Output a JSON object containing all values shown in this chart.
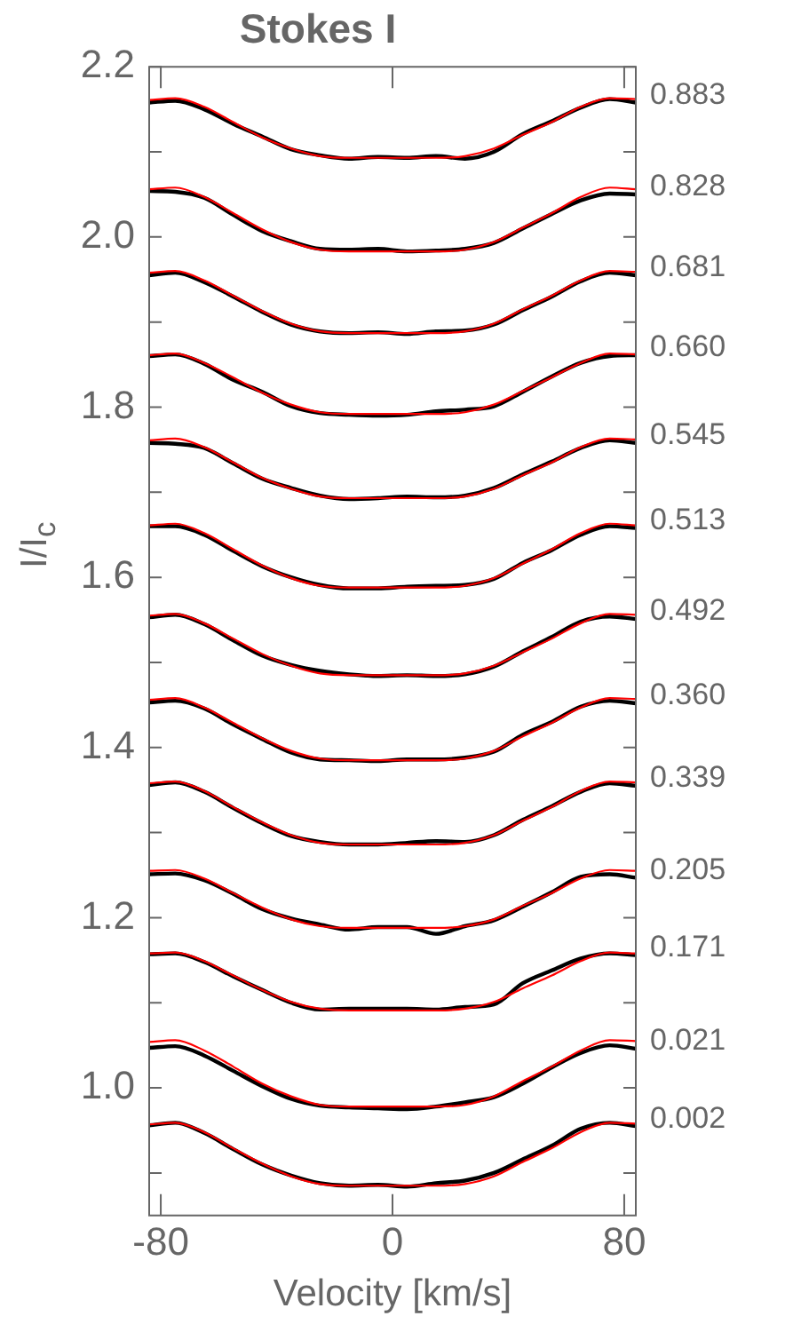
{
  "chart_data": {
    "type": "line",
    "title": "Stokes I",
    "xlabel": "Velocity [km/s]",
    "ylabel": "I/I$_{c}$",
    "x": [
      -84,
      -75,
      -65,
      -55,
      -45,
      -35,
      -25,
      -15,
      -5,
      5,
      15,
      25,
      35,
      45,
      55,
      65,
      75,
      84
    ],
    "xlim": [
      -84,
      84
    ],
    "xticks": [
      -80,
      0,
      80
    ],
    "ylim": [
      0.85,
      2.2
    ],
    "yticks": [
      {
        "value": 0.9,
        "label": null
      },
      {
        "value": 1.0,
        "label": "1.0"
      },
      {
        "value": 1.1,
        "label": null
      },
      1.2,
      {
        "value": 1.3,
        "label": null
      },
      1.4,
      {
        "value": 1.5,
        "label": null
      },
      1.6,
      {
        "value": 1.7,
        "label": null
      },
      1.8,
      {
        "value": 1.9,
        "label": null
      },
      {
        "value": 2.0,
        "label": "2.0"
      },
      {
        "value": 2.1,
        "label": null
      },
      2.2
    ],
    "legend": false,
    "series": [
      {
        "color": "#ff0000",
        "values": [
          2.161,
          2.163,
          2.153,
          2.135,
          2.117,
          2.104,
          2.095,
          2.093,
          2.093,
          2.093,
          2.093,
          2.095,
          2.104,
          2.12,
          2.135,
          2.153,
          2.163,
          2.162
        ]
      },
      {
        "name": "0.883",
        "color": "#000000",
        "values": [
          2.158,
          2.16,
          2.15,
          2.133,
          2.118,
          2.103,
          2.096,
          2.092,
          2.094,
          2.093,
          2.095,
          2.092,
          2.1,
          2.121,
          2.136,
          2.152,
          2.162,
          2.158
        ]
      },
      {
        "color": "#ff0000",
        "values": [
          2.056,
          2.058,
          2.047,
          2.028,
          2.009,
          1.994,
          1.985,
          1.983,
          1.983,
          1.983,
          1.983,
          1.985,
          1.994,
          2.011,
          2.028,
          2.047,
          2.058,
          2.056
        ]
      },
      {
        "name": "0.828",
        "color": "#000000",
        "values": [
          2.054,
          2.053,
          2.046,
          2.026,
          2.007,
          1.995,
          1.986,
          1.985,
          1.986,
          1.983,
          1.984,
          1.986,
          1.993,
          2.01,
          2.027,
          2.043,
          2.051,
          2.05
        ]
      },
      {
        "color": "#ff0000",
        "values": [
          1.958,
          1.96,
          1.949,
          1.931,
          1.913,
          1.898,
          1.889,
          1.887,
          1.887,
          1.887,
          1.887,
          1.889,
          1.898,
          1.915,
          1.931,
          1.949,
          1.96,
          1.959
        ]
      },
      {
        "name": "0.681",
        "color": "#000000",
        "values": [
          1.955,
          1.958,
          1.947,
          1.93,
          1.912,
          1.897,
          1.889,
          1.887,
          1.888,
          1.886,
          1.889,
          1.89,
          1.897,
          1.914,
          1.93,
          1.948,
          1.958,
          1.955
        ]
      },
      {
        "color": "#ff0000",
        "values": [
          1.861,
          1.863,
          1.852,
          1.835,
          1.817,
          1.803,
          1.794,
          1.792,
          1.792,
          1.792,
          1.792,
          1.794,
          1.803,
          1.819,
          1.835,
          1.852,
          1.863,
          1.862
        ]
      },
      {
        "name": "0.660",
        "color": "#000000",
        "values": [
          1.86,
          1.862,
          1.851,
          1.832,
          1.818,
          1.801,
          1.793,
          1.791,
          1.79,
          1.791,
          1.795,
          1.797,
          1.801,
          1.818,
          1.836,
          1.852,
          1.86,
          1.861
        ]
      },
      {
        "color": "#ff0000",
        "values": [
          1.761,
          1.763,
          1.753,
          1.735,
          1.717,
          1.704,
          1.695,
          1.693,
          1.693,
          1.693,
          1.693,
          1.695,
          1.704,
          1.72,
          1.735,
          1.753,
          1.763,
          1.762
        ]
      },
      {
        "name": "0.545",
        "color": "#000000",
        "values": [
          1.758,
          1.757,
          1.752,
          1.734,
          1.716,
          1.705,
          1.696,
          1.692,
          1.693,
          1.695,
          1.694,
          1.696,
          1.705,
          1.721,
          1.736,
          1.752,
          1.761,
          1.758
        ]
      },
      {
        "color": "#ff0000",
        "values": [
          1.661,
          1.663,
          1.652,
          1.633,
          1.614,
          1.599,
          1.59,
          1.588,
          1.588,
          1.588,
          1.588,
          1.59,
          1.599,
          1.616,
          1.633,
          1.652,
          1.663,
          1.661
        ]
      },
      {
        "name": "0.513",
        "color": "#000000",
        "values": [
          1.66,
          1.66,
          1.65,
          1.631,
          1.613,
          1.6,
          1.591,
          1.587,
          1.587,
          1.589,
          1.59,
          1.591,
          1.598,
          1.617,
          1.632,
          1.65,
          1.66,
          1.658
        ]
      },
      {
        "color": "#ff0000",
        "values": [
          1.555,
          1.557,
          1.546,
          1.528,
          1.51,
          1.496,
          1.487,
          1.485,
          1.485,
          1.485,
          1.485,
          1.487,
          1.496,
          1.512,
          1.528,
          1.546,
          1.557,
          1.556
        ]
      },
      {
        "name": "0.492",
        "color": "#000000",
        "values": [
          1.553,
          1.556,
          1.545,
          1.526,
          1.508,
          1.497,
          1.49,
          1.486,
          1.484,
          1.485,
          1.484,
          1.486,
          1.495,
          1.513,
          1.53,
          1.548,
          1.554,
          1.551
        ]
      },
      {
        "color": "#ff0000",
        "values": [
          1.456,
          1.458,
          1.447,
          1.429,
          1.411,
          1.396,
          1.387,
          1.385,
          1.385,
          1.385,
          1.385,
          1.387,
          1.396,
          1.413,
          1.429,
          1.447,
          1.458,
          1.457
        ]
      },
      {
        "name": "0.360",
        "color": "#000000",
        "values": [
          1.453,
          1.455,
          1.446,
          1.427,
          1.41,
          1.394,
          1.386,
          1.385,
          1.384,
          1.386,
          1.386,
          1.388,
          1.395,
          1.415,
          1.43,
          1.448,
          1.455,
          1.452
        ]
      },
      {
        "color": "#ff0000",
        "values": [
          1.358,
          1.36,
          1.349,
          1.33,
          1.312,
          1.297,
          1.288,
          1.286,
          1.286,
          1.286,
          1.286,
          1.288,
          1.297,
          1.314,
          1.33,
          1.349,
          1.36,
          1.359
        ]
      },
      {
        "name": "0.339",
        "color": "#000000",
        "values": [
          1.356,
          1.359,
          1.348,
          1.329,
          1.311,
          1.296,
          1.289,
          1.286,
          1.286,
          1.288,
          1.29,
          1.289,
          1.297,
          1.315,
          1.331,
          1.348,
          1.358,
          1.355
        ]
      },
      {
        "color": "#ff0000",
        "values": [
          1.255,
          1.256,
          1.246,
          1.229,
          1.212,
          1.198,
          1.19,
          1.188,
          1.188,
          1.188,
          1.188,
          1.19,
          1.198,
          1.214,
          1.229,
          1.246,
          1.256,
          1.255
        ]
      },
      {
        "name": "0.205",
        "color": "#000000",
        "values": [
          1.251,
          1.252,
          1.244,
          1.228,
          1.21,
          1.199,
          1.192,
          1.186,
          1.189,
          1.189,
          1.181,
          1.19,
          1.197,
          1.213,
          1.23,
          1.248,
          1.251,
          1.247
        ]
      },
      {
        "color": "#ff0000",
        "values": [
          1.158,
          1.159,
          1.149,
          1.132,
          1.115,
          1.101,
          1.093,
          1.091,
          1.091,
          1.091,
          1.091,
          1.093,
          1.101,
          1.117,
          1.132,
          1.149,
          1.159,
          1.158
        ]
      },
      {
        "name": "0.171",
        "color": "#000000",
        "values": [
          1.157,
          1.158,
          1.148,
          1.131,
          1.115,
          1.1,
          1.092,
          1.093,
          1.093,
          1.093,
          1.092,
          1.095,
          1.098,
          1.123,
          1.138,
          1.152,
          1.158,
          1.156
        ]
      },
      {
        "color": "#ff0000",
        "values": [
          1.054,
          1.056,
          1.044,
          1.025,
          1.005,
          0.99,
          0.98,
          0.978,
          0.978,
          0.978,
          0.978,
          0.98,
          0.99,
          1.008,
          1.025,
          1.044,
          1.056,
          1.055
        ]
      },
      {
        "name": "0.021",
        "color": "#000000",
        "values": [
          1.047,
          1.049,
          1.038,
          1.02,
          1.002,
          0.987,
          0.979,
          0.977,
          0.976,
          0.975,
          0.978,
          0.983,
          0.989,
          1.005,
          1.024,
          1.041,
          1.05,
          1.046
        ]
      },
      {
        "color": "#ff0000",
        "values": [
          0.957,
          0.959,
          0.948,
          0.929,
          0.911,
          0.896,
          0.887,
          0.885,
          0.885,
          0.885,
          0.885,
          0.887,
          0.896,
          0.913,
          0.929,
          0.948,
          0.959,
          0.958
        ]
      },
      {
        "name": "0.002",
        "color": "#000000",
        "values": [
          0.956,
          0.959,
          0.947,
          0.928,
          0.91,
          0.897,
          0.888,
          0.885,
          0.886,
          0.884,
          0.888,
          0.891,
          0.9,
          0.916,
          0.932,
          0.952,
          0.959,
          0.955
        ]
      }
    ]
  }
}
